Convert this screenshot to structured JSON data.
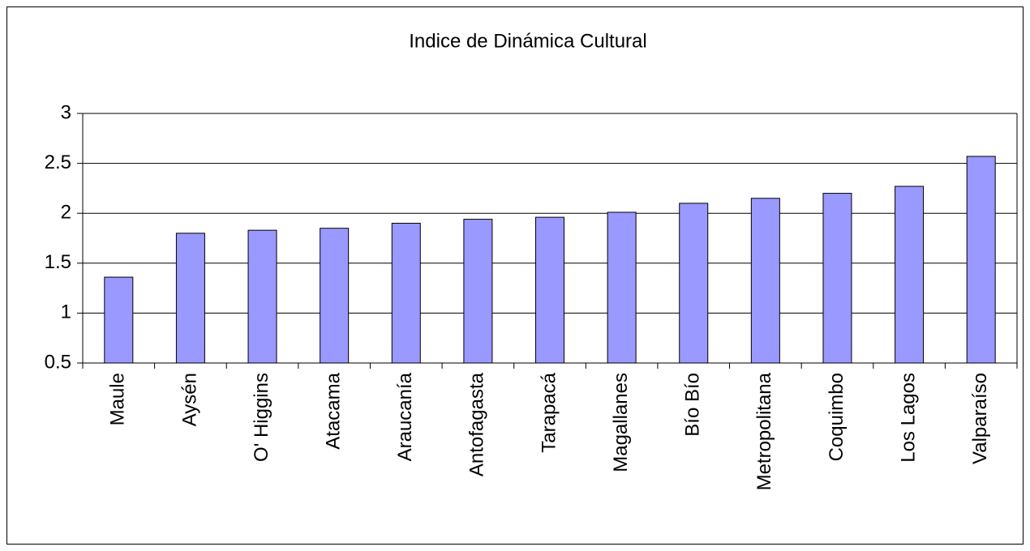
{
  "chart_data": {
    "type": "bar",
    "title": "Indice de Dinámica Cultural",
    "categories": [
      "Maule",
      "Aysén",
      "O' Higgins",
      "Atacama",
      "Araucanía",
      "Antofagasta",
      "Tarapacá",
      "Magallanes",
      "Bío Bío",
      "Metropolitana",
      "Coquimbo",
      "Los Lagos",
      "Valparaíso"
    ],
    "values": [
      1.36,
      1.8,
      1.83,
      1.85,
      1.9,
      1.94,
      1.96,
      2.01,
      2.1,
      2.15,
      2.2,
      2.27,
      2.57
    ],
    "color": "#9999ff",
    "ylim": [
      0.5,
      3
    ],
    "yticks": [
      0.5,
      1,
      1.5,
      2,
      2.5,
      3
    ],
    "grid": true
  }
}
